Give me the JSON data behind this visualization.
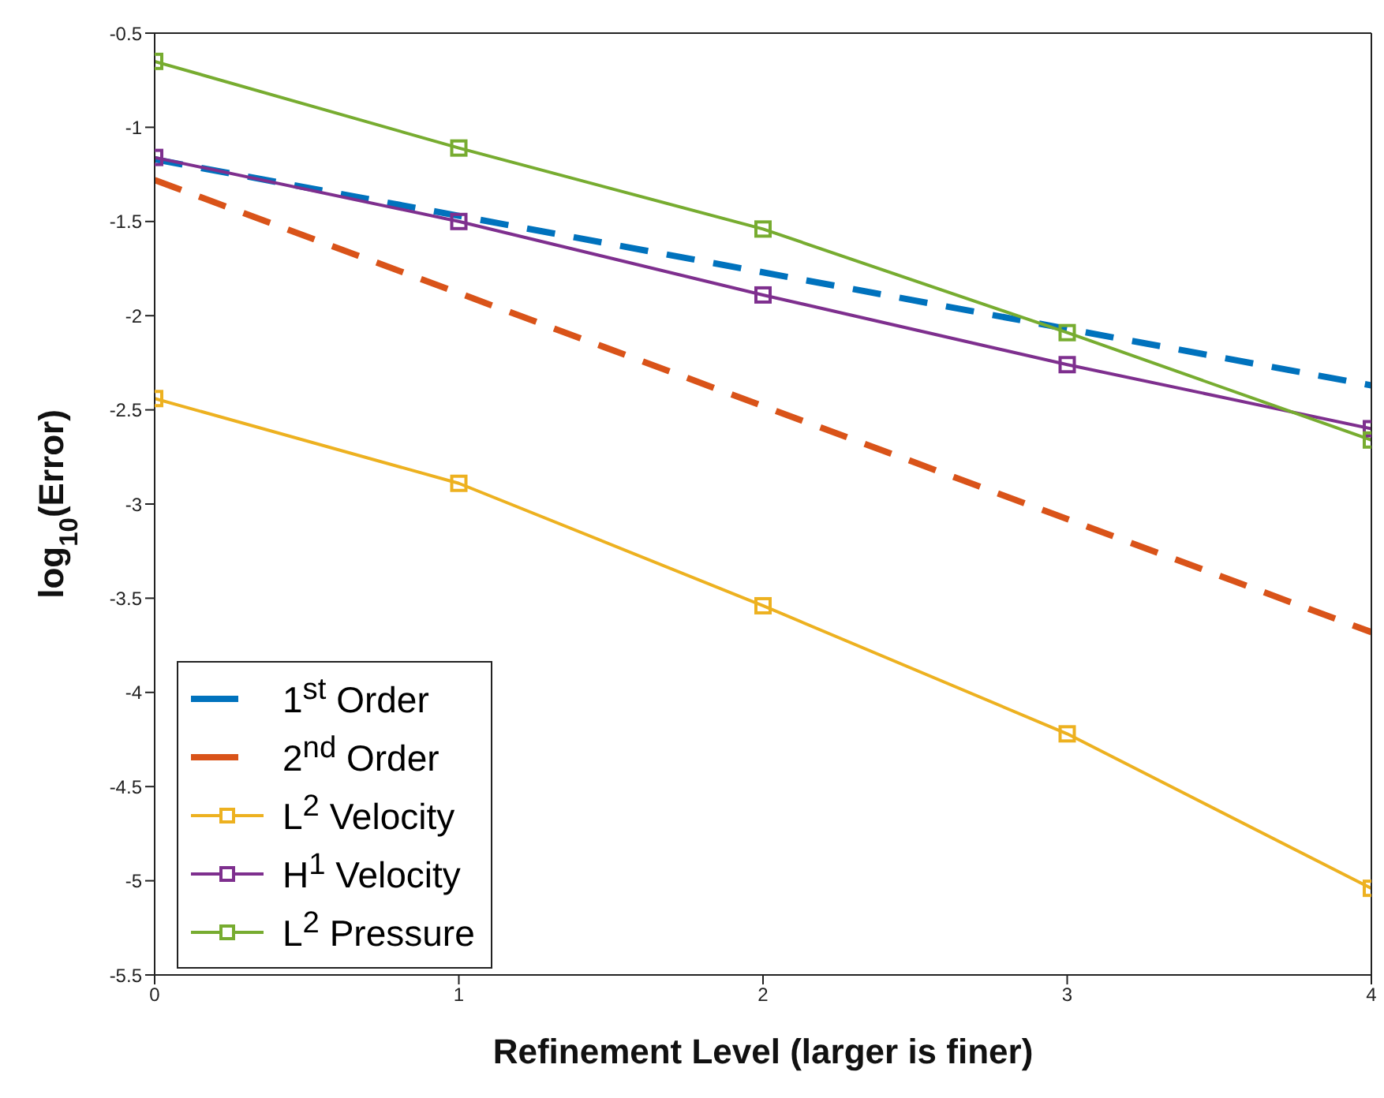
{
  "chart_data": {
    "type": "line",
    "xlabel": "Refinement Level (larger is finer)",
    "ylabel": "log$_{10}$(Error)",
    "x": [
      0,
      1,
      2,
      3,
      4
    ],
    "xlim": [
      0,
      4
    ],
    "xticks": [
      0,
      1,
      2,
      3,
      4
    ],
    "ylim": [
      -5.5,
      -0.5
    ],
    "yticks": [
      -5.5,
      -5,
      -4.5,
      -4,
      -3.5,
      -3,
      -2.5,
      -2,
      -1.5,
      -1,
      -0.5
    ],
    "grid": false,
    "legend": "bottom left",
    "series": [
      {
        "name": "1$^{st}$ Order",
        "color": "#0072bd",
        "line_style": "dashed",
        "marker": "none",
        "values": [
          -1.17,
          -1.47,
          -1.77,
          -2.07,
          -2.37
        ]
      },
      {
        "name": "2$^{nd}$ Order",
        "color": "#d95319",
        "line_style": "dashed",
        "marker": "none",
        "values": [
          -1.28,
          -1.88,
          -2.48,
          -3.08,
          -3.68
        ]
      },
      {
        "name": "L$^{2}$ Velocity",
        "color": "#edb120",
        "line_style": "solid",
        "marker": "square",
        "values": [
          -2.44,
          -2.89,
          -3.54,
          -4.22,
          -5.04
        ]
      },
      {
        "name": "H$^{1}$ Velocity",
        "color": "#7e2f8e",
        "line_style": "solid",
        "marker": "square",
        "values": [
          -1.16,
          -1.5,
          -1.89,
          -2.26,
          -2.6
        ]
      },
      {
        "name": "L$^{2}$ Pressure",
        "color": "#77ac30",
        "line_style": "solid",
        "marker": "square",
        "values": [
          -0.65,
          -1.11,
          -1.54,
          -2.09,
          -2.66
        ]
      }
    ]
  }
}
